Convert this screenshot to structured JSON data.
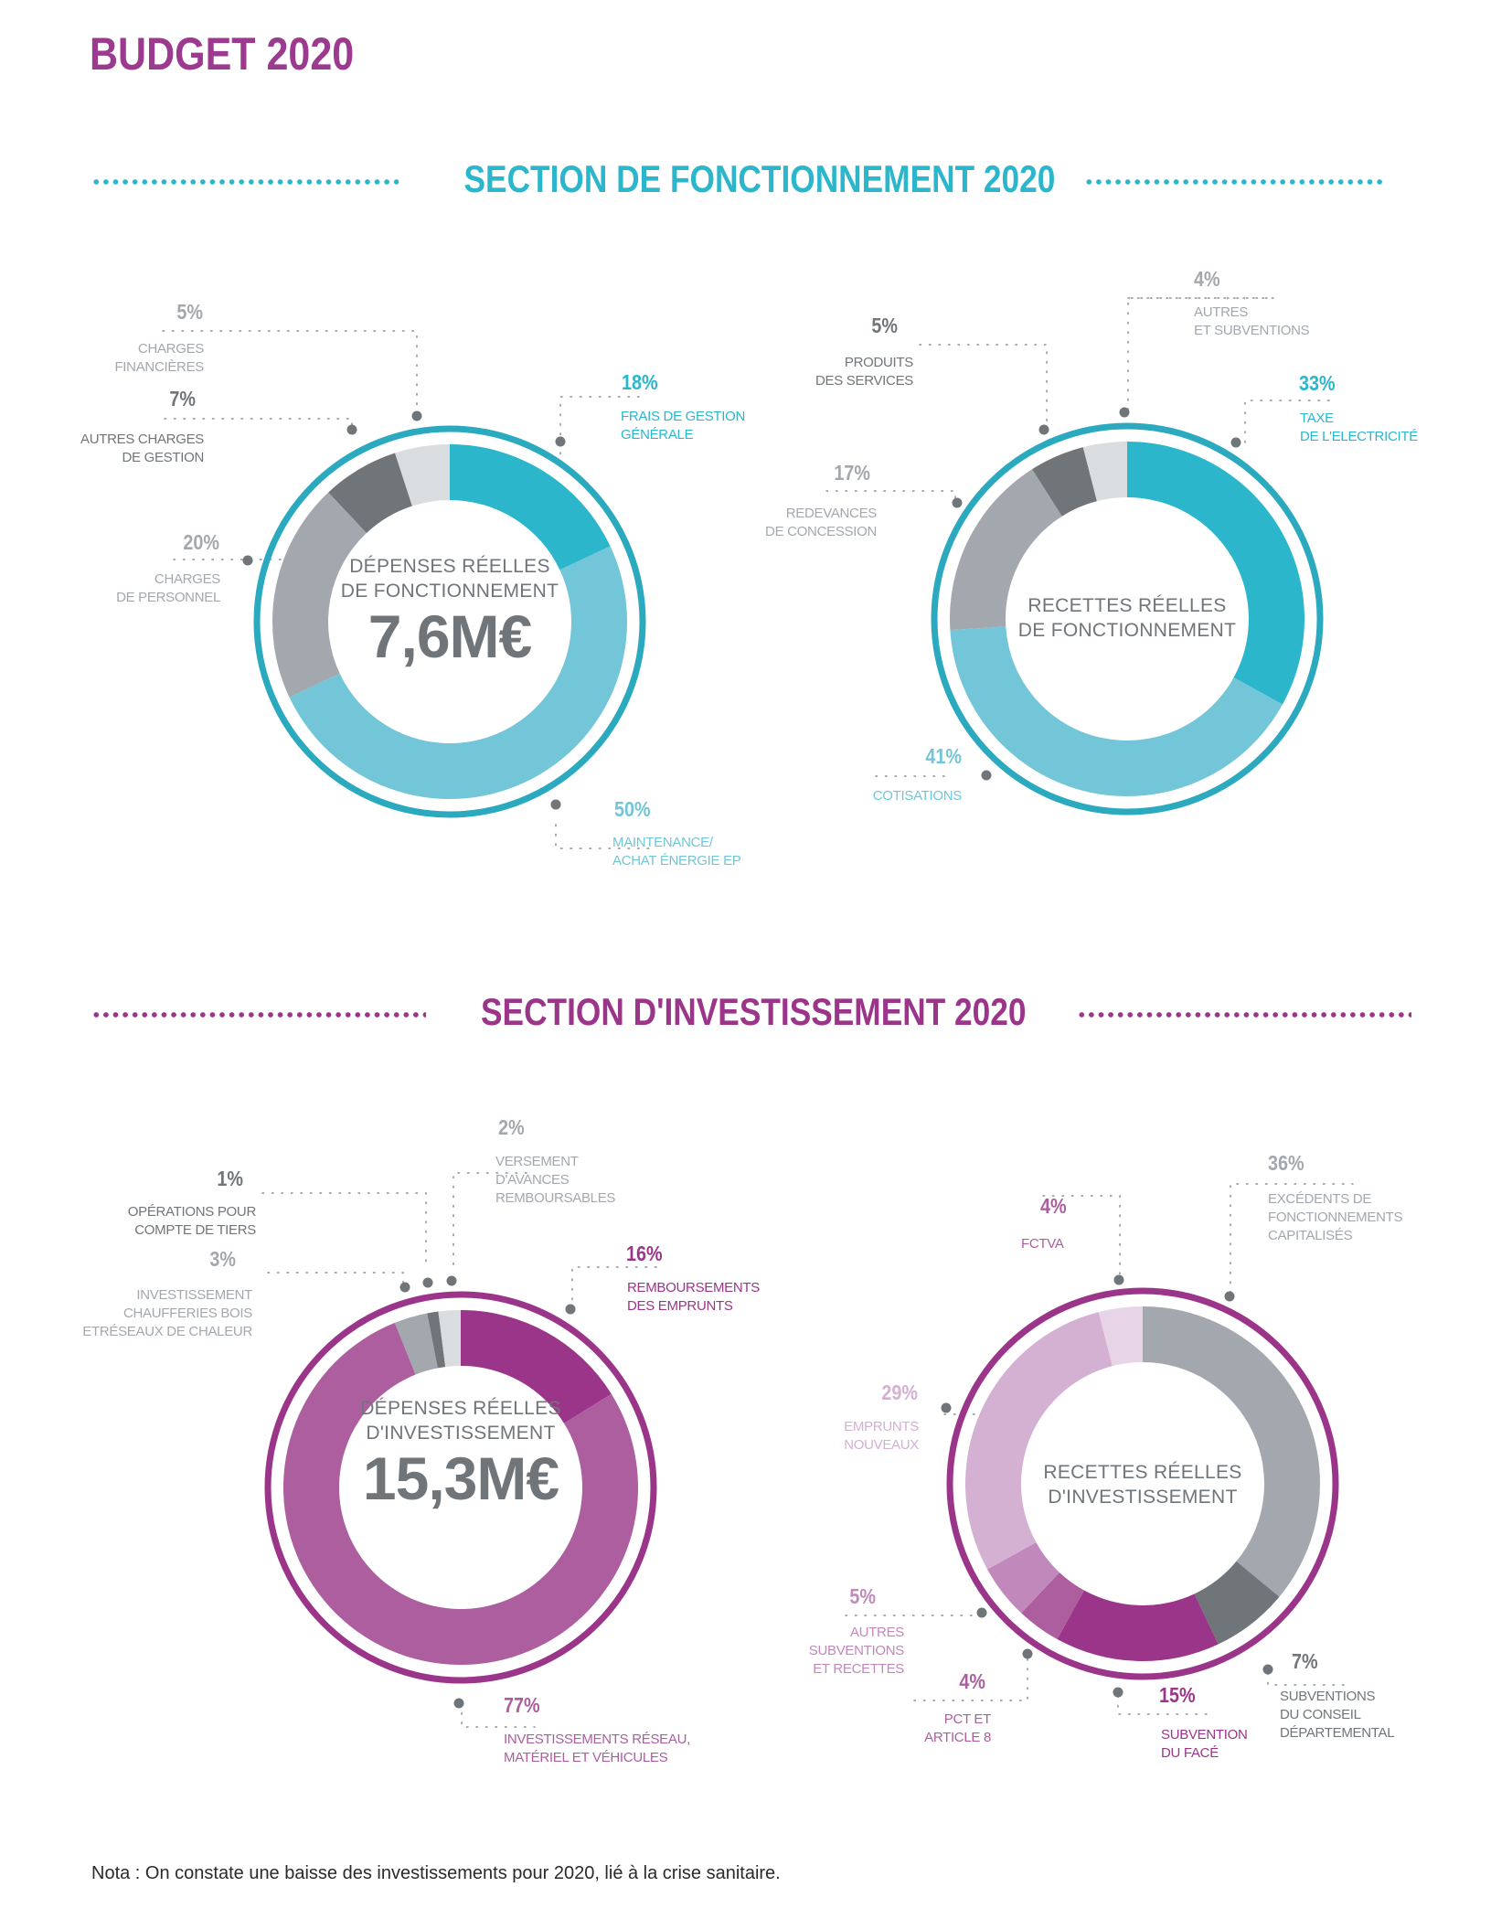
{
  "page": {
    "title": "BUDGET 2020",
    "note": "Nota : On constate une baisse des investissements pour 2020, lié à la crise sanitaire."
  },
  "colors": {
    "title_purple": "#9b3a8e",
    "fonctionnement_accent": "#2bb6cc",
    "fonctionnement_light": "#72c6d7",
    "investissement_accent": "#9b3589",
    "gray_light": "#d9dde0",
    "gray_dark": "#6f7579",
    "gray_mid": "#a2a8ae"
  },
  "sections": {
    "fonctionnement": {
      "title": "SECTION DE FONCTIONNEMENT 2020"
    },
    "investissement": {
      "title": "SECTION D'INVESTISSEMENT 2020"
    }
  },
  "charts": {
    "dep_fonct": {
      "center_line1": "DÉPENSES RÉELLES",
      "center_line2": "DE FONCTIONNEMENT",
      "center_total": "7,6M€",
      "labels": {
        "frais": {
          "pct": "18%",
          "line1": "FRAIS DE GESTION",
          "line2": "GÉNÉRALE"
        },
        "maintenance": {
          "pct": "50%",
          "line1": "MAINTENANCE/",
          "line2": "ACHAT ÉNERGIE EP"
        },
        "personnel": {
          "pct": "20%",
          "line1": "CHARGES",
          "line2": "DE PERSONNEL"
        },
        "autres": {
          "pct": "7%",
          "line1": "AUTRES CHARGES",
          "line2": "DE GESTION"
        },
        "financieres": {
          "pct": "5%",
          "line1": "CHARGES",
          "line2": "FINANCIÈRES"
        }
      }
    },
    "rec_fonct": {
      "center_line1": "RECETTES RÉELLES",
      "center_line2": "DE FONCTIONNEMENT",
      "labels": {
        "taxe": {
          "pct": "33%",
          "line1": "TAXE",
          "line2": "DE L'ELECTRICITÉ"
        },
        "cotisations": {
          "pct": "41%",
          "line1": "COTISATIONS"
        },
        "redevances": {
          "pct": "17%",
          "line1": "REDEVANCES",
          "line2": "DE CONCESSION"
        },
        "produits": {
          "pct": "5%",
          "line1": "PRODUITS",
          "line2": "DES SERVICES"
        },
        "autres": {
          "pct": "4%",
          "line1": "AUTRES",
          "line2": "ET SUBVENTIONS"
        }
      }
    },
    "dep_invest": {
      "center_line1": "DÉPENSES RÉELLES",
      "center_line2": "D'INVESTISSEMENT",
      "center_total": "15,3M€",
      "labels": {
        "remboursements": {
          "pct": "16%",
          "line1": "REMBOURSEMENTS",
          "line2": "DES EMPRUNTS"
        },
        "reseau": {
          "pct": "77%",
          "line1": "INVESTISSEMENTS RÉSEAU,",
          "line2": "MATÉRIEL ET VÉHICULES"
        },
        "chaufferies": {
          "pct": "3%",
          "line1": "INVESTISSEMENT",
          "line2": "CHAUFFERIES BOIS",
          "line3": "ETRÉSEAUX DE CHALEUR"
        },
        "tiers": {
          "pct": "1%",
          "line1": "OPÉRATIONS POUR",
          "line2": "COMPTE DE TIERS"
        },
        "avances": {
          "pct": "2%",
          "line1": "VERSEMENT",
          "line2": "D'AVANCES",
          "line3": "REMBOURSABLES"
        }
      }
    },
    "rec_invest": {
      "center_line1": "RECETTES RÉELLES",
      "center_line2": "D'INVESTISSEMENT",
      "labels": {
        "excedents": {
          "pct": "36%",
          "line1": "EXCÉDENTS DE",
          "line2": "FONCTIONNEMENTS",
          "line3": "CAPITALISÉS"
        },
        "conseil": {
          "pct": "7%",
          "line1": "SUBVENTIONS",
          "line2": "DU CONSEIL",
          "line3": "DÉPARTEMENTAL"
        },
        "face": {
          "pct": "15%",
          "line1": "SUBVENTION",
          "line2": "DU FACÉ"
        },
        "pct_art8": {
          "pct": "4%",
          "line1": "PCT ET",
          "line2": "ARTICLE 8"
        },
        "autres_subv": {
          "pct": "5%",
          "line1": "AUTRES",
          "line2": "SUBVENTIONS",
          "line3": "ET RECETTES"
        },
        "emprunts": {
          "pct": "29%",
          "line1": "EMPRUNTS",
          "line2": "NOUVEAUX"
        },
        "fctva": {
          "pct": "4%",
          "line1": "FCTVA"
        }
      }
    }
  },
  "chart_data": [
    {
      "type": "pie",
      "title": "DÉPENSES RÉELLES DE FONCTIONNEMENT 7,6M€",
      "section": "SECTION DE FONCTIONNEMENT 2020",
      "categories": [
        "Frais de gestion générale",
        "Maintenance/achat énergie EP",
        "Charges de personnel",
        "Autres charges de gestion",
        "Charges financières"
      ],
      "values": [
        18,
        50,
        20,
        7,
        5
      ],
      "colors": [
        "#2bb6cc",
        "#72c6d7",
        "#a2a8ae",
        "#6f7579",
        "#d9dde0"
      ],
      "total": "7,6M€",
      "unit": "%"
    },
    {
      "type": "pie",
      "title": "RECETTES RÉELLES DE FONCTIONNEMENT",
      "section": "SECTION DE FONCTIONNEMENT 2020",
      "categories": [
        "Taxe de l'électricité",
        "Cotisations",
        "Redevances de concession",
        "Produits des services",
        "Autres et subventions"
      ],
      "values": [
        33,
        41,
        17,
        5,
        4
      ],
      "colors": [
        "#2bb6cc",
        "#72c6d7",
        "#a2a8ae",
        "#6f7579",
        "#d9dde0"
      ],
      "unit": "%"
    },
    {
      "type": "pie",
      "title": "DÉPENSES RÉELLES D'INVESTISSEMENT 15,3M€",
      "section": "SECTION D'INVESTISSEMENT 2020",
      "categories": [
        "Remboursements des emprunts",
        "Investissements réseau, matériel et véhicules",
        "Investissement chaufferies bois et réseaux de chaleur",
        "Opérations pour compte de tiers",
        "Versement d'avances remboursables"
      ],
      "values": [
        16,
        77,
        3,
        1,
        2
      ],
      "colors": [
        "#9b3589",
        "#ac5e9f",
        "#a2a8ae",
        "#6f7579",
        "#d9dde0"
      ],
      "total": "15,3M€",
      "unit": "%"
    },
    {
      "type": "pie",
      "title": "RECETTES RÉELLES D'INVESTISSEMENT",
      "section": "SECTION D'INVESTISSEMENT 2020",
      "categories": [
        "Excédents de fonctionnements capitalisés",
        "Subventions du conseil départemental",
        "Subvention du FACÉ",
        "PCT et article 8",
        "Autres subventions et recettes",
        "Emprunts nouveaux",
        "FCTVA"
      ],
      "values": [
        36,
        7,
        15,
        4,
        5,
        29,
        4
      ],
      "colors": [
        "#a2a8ae",
        "#6f7579",
        "#9b3589",
        "#ac5e9f",
        "#c189bb",
        "#d4b0d3",
        "#e7d5e7"
      ],
      "unit": "%"
    }
  ]
}
